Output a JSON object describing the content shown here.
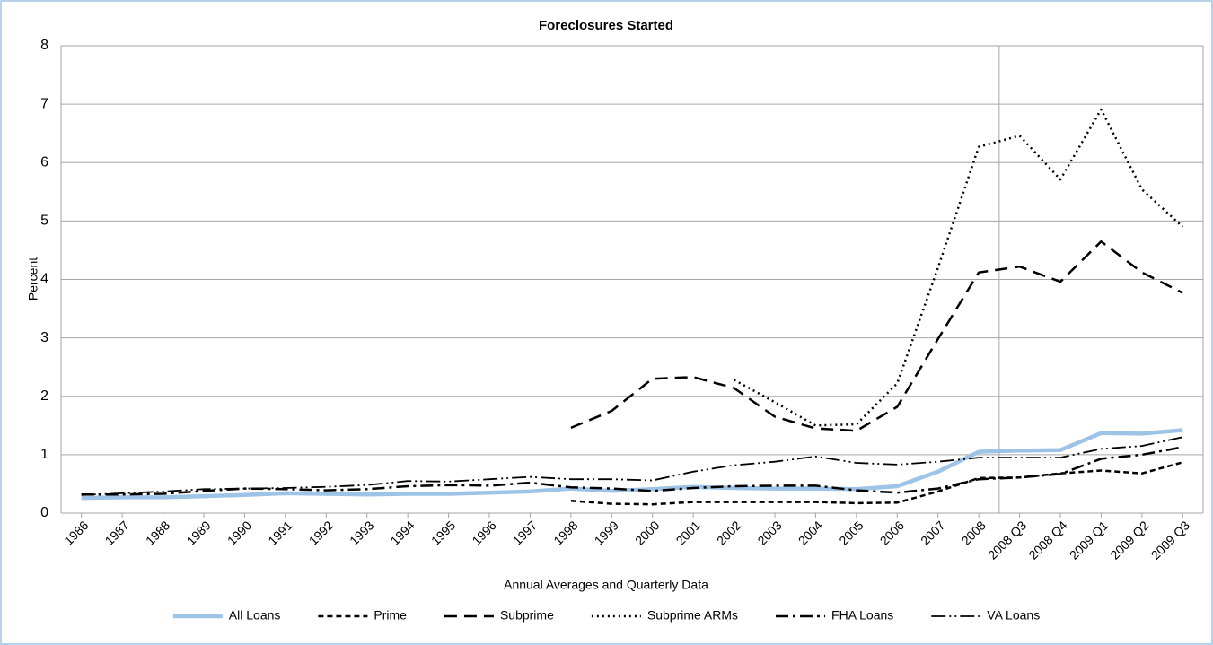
{
  "chart_data": {
    "type": "line",
    "title": "Foreclosures Started",
    "y_label": "Percent",
    "x_label": "Annual Averages and Quarterly Data",
    "categories": [
      "1986",
      "1987",
      "1988",
      "1989",
      "1990",
      "1991",
      "1992",
      "1993",
      "1994",
      "1995",
      "1996",
      "1997",
      "1998",
      "1999",
      "2000",
      "2001",
      "2002",
      "2003",
      "2004",
      "2005",
      "2006",
      "2007",
      "2008",
      "2008 Q3",
      "2008 Q4",
      "2009 Q1",
      "2009 Q2",
      "2009 Q3"
    ],
    "series": [
      {
        "name": "All Loans",
        "color": "#9dc3e6",
        "width": 4.5,
        "dash": "none",
        "values": [
          0.26,
          0.27,
          0.27,
          0.29,
          0.31,
          0.34,
          0.33,
          0.32,
          0.33,
          0.33,
          0.35,
          0.37,
          0.42,
          0.38,
          0.41,
          0.45,
          0.43,
          0.42,
          0.42,
          0.41,
          0.46,
          0.71,
          1.05,
          1.07,
          1.08,
          1.37,
          1.36,
          1.42
        ]
      },
      {
        "name": "Prime",
        "color": "#000000",
        "width": 2.5,
        "dash": "6,4",
        "values": [
          null,
          null,
          null,
          null,
          null,
          null,
          null,
          null,
          null,
          null,
          null,
          null,
          0.21,
          0.16,
          0.15,
          0.19,
          0.19,
          0.19,
          0.19,
          0.17,
          0.18,
          0.37,
          0.6,
          0.61,
          0.68,
          0.73,
          0.68,
          0.87
        ]
      },
      {
        "name": "Subprime",
        "color": "#000000",
        "width": 2.5,
        "dash": "14,8",
        "values": [
          null,
          null,
          null,
          null,
          null,
          null,
          null,
          null,
          null,
          null,
          null,
          null,
          1.46,
          1.75,
          2.3,
          2.33,
          2.14,
          1.65,
          1.45,
          1.41,
          1.82,
          2.98,
          4.12,
          4.22,
          3.96,
          4.65,
          4.12,
          3.77
        ]
      },
      {
        "name": "Subprime ARMs",
        "color": "#000000",
        "width": 2.5,
        "dash": "2,4",
        "values": [
          null,
          null,
          null,
          null,
          null,
          null,
          null,
          null,
          null,
          null,
          null,
          null,
          null,
          null,
          null,
          null,
          2.28,
          1.9,
          1.5,
          1.52,
          2.22,
          4.2,
          6.27,
          6.46,
          5.71,
          6.91,
          5.54,
          4.9
        ]
      },
      {
        "name": "FHA Loans",
        "color": "#000000",
        "width": 2.5,
        "dash": "14,5,3,5",
        "values": [
          0.32,
          0.32,
          0.33,
          0.38,
          0.42,
          0.41,
          0.39,
          0.41,
          0.46,
          0.48,
          0.47,
          0.52,
          0.44,
          0.42,
          0.38,
          0.43,
          0.46,
          0.47,
          0.47,
          0.39,
          0.35,
          0.42,
          0.58,
          0.61,
          0.67,
          0.93,
          1.0,
          1.13
        ]
      },
      {
        "name": "VA Loans",
        "color": "#000000",
        "width": 1.8,
        "dash": "16,4,2,4,2,4",
        "values": [
          0.31,
          0.34,
          0.37,
          0.41,
          0.42,
          0.43,
          0.45,
          0.48,
          0.55,
          0.54,
          0.58,
          0.62,
          0.58,
          0.58,
          0.56,
          0.71,
          0.82,
          0.88,
          0.97,
          0.86,
          0.83,
          0.88,
          0.95,
          0.95,
          0.95,
          1.1,
          1.15,
          1.3
        ]
      }
    ],
    "ylim": [
      0,
      8
    ],
    "yticks": [
      0,
      1,
      2,
      3,
      4,
      5,
      6,
      7,
      8
    ],
    "grid": true,
    "legend": "bottom"
  }
}
